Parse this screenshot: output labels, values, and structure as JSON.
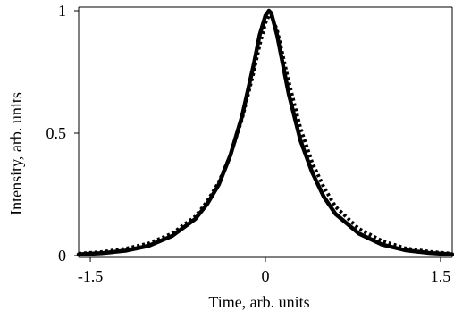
{
  "chart_data": {
    "type": "line",
    "title": "",
    "xlabel": "Time, arb. units",
    "ylabel": "Intensity, arb. units",
    "xlim": [
      -1.6,
      1.6
    ],
    "ylim": [
      0,
      1
    ],
    "grid": false,
    "legend": "none",
    "x_ticks": [
      {
        "value": -1.5,
        "label": "-1.5"
      },
      {
        "value": 0,
        "label": "0"
      },
      {
        "value": 1.5,
        "label": "1.5"
      }
    ],
    "y_ticks": [
      {
        "value": 0,
        "label": "0"
      },
      {
        "value": 0.5,
        "label": "0.5"
      },
      {
        "value": 1,
        "label": "1"
      }
    ],
    "series": [
      {
        "style": "solid",
        "color": "#000000",
        "x": [
          -1.6,
          -1.4,
          -1.2,
          -1.0,
          -0.8,
          -0.6,
          -0.5,
          -0.4,
          -0.3,
          -0.2,
          -0.1,
          -0.05,
          0.0,
          0.03,
          0.05,
          0.1,
          0.2,
          0.3,
          0.4,
          0.5,
          0.6,
          0.8,
          1.0,
          1.2,
          1.4,
          1.6
        ],
        "values": [
          0.005,
          0.01,
          0.02,
          0.04,
          0.08,
          0.15,
          0.21,
          0.29,
          0.41,
          0.57,
          0.78,
          0.9,
          0.98,
          1.0,
          0.99,
          0.9,
          0.66,
          0.47,
          0.34,
          0.24,
          0.17,
          0.09,
          0.045,
          0.022,
          0.011,
          0.005
        ]
      },
      {
        "style": "dotted",
        "color": "#000000",
        "x": [
          -1.6,
          -1.4,
          -1.2,
          -1.0,
          -0.8,
          -0.6,
          -0.5,
          -0.4,
          -0.3,
          -0.2,
          -0.1,
          -0.05,
          0.0,
          0.03,
          0.05,
          0.1,
          0.2,
          0.3,
          0.4,
          0.5,
          0.6,
          0.8,
          1.0,
          1.2,
          1.4,
          1.6
        ],
        "values": [
          0.008,
          0.015,
          0.028,
          0.05,
          0.09,
          0.16,
          0.22,
          0.3,
          0.41,
          0.56,
          0.75,
          0.86,
          0.95,
          0.98,
          0.98,
          0.92,
          0.71,
          0.52,
          0.38,
          0.28,
          0.2,
          0.11,
          0.06,
          0.03,
          0.016,
          0.008
        ]
      }
    ]
  }
}
